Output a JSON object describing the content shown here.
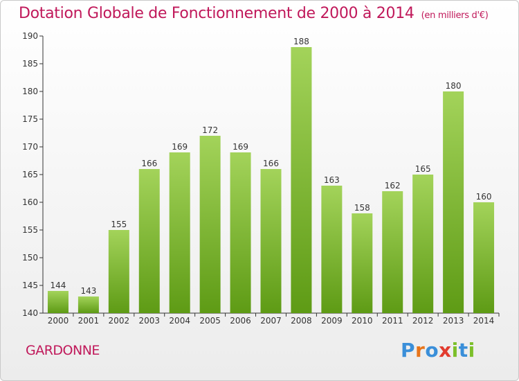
{
  "title": "Dotation Globale de Fonctionnement de 2000 à 2014",
  "subtitle": "(en milliers d'€)",
  "municipality": "GARDONNE",
  "logo": {
    "letters": [
      "P",
      "r",
      "o",
      "x",
      "i",
      "t",
      "i"
    ],
    "colors": [
      "#3a8fd9",
      "#e8751a",
      "#3a8fd9",
      "#e23b2e",
      "#7cbf2a",
      "#3a8fd9",
      "#7cbf2a"
    ]
  },
  "colors": {
    "title": "#c0185a",
    "bar_top": "#a3d35a",
    "bar_bottom": "#5e9b15",
    "axis": "#333333"
  },
  "chart_data": {
    "type": "bar",
    "categories": [
      "2000",
      "2001",
      "2002",
      "2003",
      "2004",
      "2005",
      "2006",
      "2007",
      "2008",
      "2009",
      "2010",
      "2011",
      "2012",
      "2013",
      "2014"
    ],
    "values": [
      144,
      143,
      155,
      166,
      169,
      172,
      169,
      166,
      188,
      163,
      158,
      162,
      165,
      180,
      160
    ],
    "ylim": [
      140,
      190
    ],
    "yticks": [
      140,
      145,
      150,
      155,
      160,
      165,
      170,
      175,
      180,
      185,
      190
    ],
    "grid": false,
    "data_labels": true
  }
}
